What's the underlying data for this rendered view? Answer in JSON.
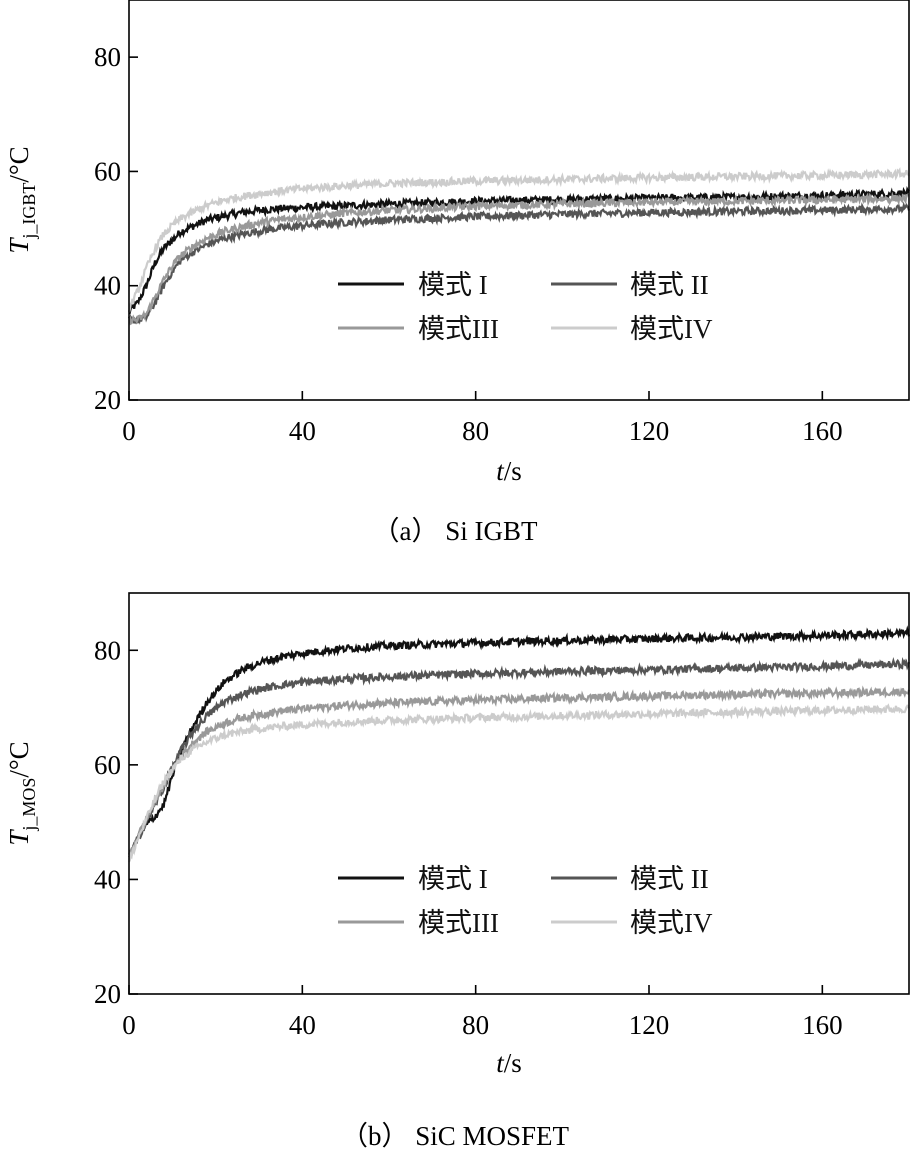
{
  "chart_data": [
    {
      "type": "line",
      "caption": "（a） Si IGBT",
      "ylabel_main": "T",
      "ylabel_sub": "j_IGBT",
      "ylabel_unit": "/°C",
      "xlabel_main": "t",
      "xlabel_unit": "/s",
      "xlim": [
        0,
        180
      ],
      "ylim": [
        20,
        90
      ],
      "xticks": [
        0,
        40,
        80,
        120,
        160
      ],
      "yticks": [
        20,
        40,
        60,
        80
      ],
      "grid": false,
      "legend_position": "lower-center",
      "series": [
        {
          "name": "模式 I",
          "color": "#111111",
          "x": [
            0,
            2,
            4,
            6,
            8,
            10,
            12,
            15,
            18,
            22,
            26,
            30,
            35,
            40,
            50,
            60,
            80,
            100,
            120,
            140,
            160,
            180
          ],
          "y": [
            35.5,
            37,
            40,
            44,
            46.5,
            48,
            49.5,
            50.5,
            51.5,
            52.2,
            52.8,
            53.2,
            53.5,
            53.7,
            54,
            54.3,
            54.8,
            55.1,
            55.3,
            55.5,
            55.8,
            56.2
          ]
        },
        {
          "name": "模式 II",
          "color": "#555555",
          "x": [
            0,
            2,
            4,
            6,
            8,
            10,
            12,
            15,
            18,
            22,
            26,
            30,
            35,
            40,
            50,
            60,
            80,
            100,
            120,
            140,
            160,
            180
          ],
          "y": [
            34,
            34,
            34.5,
            37,
            40,
            42.5,
            44.5,
            46,
            47.2,
            48.3,
            49,
            49.6,
            50.1,
            50.5,
            51.1,
            51.5,
            52.1,
            52.5,
            52.8,
            53,
            53.2,
            53.5
          ]
        },
        {
          "name": "模式III",
          "color": "#999999",
          "x": [
            0,
            2,
            4,
            6,
            8,
            10,
            12,
            15,
            18,
            22,
            26,
            30,
            35,
            40,
            50,
            60,
            80,
            100,
            120,
            140,
            160,
            180
          ],
          "y": [
            34,
            34,
            35,
            38,
            41,
            43.5,
            45.3,
            47,
            48.3,
            49.5,
            50.3,
            51,
            51.6,
            52,
            52.7,
            53.2,
            53.9,
            54.3,
            54.6,
            54.8,
            55,
            55.3
          ]
        },
        {
          "name": "模式IV",
          "color": "#cccccc",
          "x": [
            0,
            2,
            4,
            6,
            8,
            10,
            12,
            15,
            18,
            22,
            26,
            30,
            35,
            40,
            50,
            60,
            80,
            100,
            120,
            140,
            160,
            180
          ],
          "y": [
            36,
            39,
            43,
            46.5,
            49,
            50.5,
            51.8,
            53,
            54,
            55,
            55.6,
            56.1,
            56.6,
            57,
            57.5,
            57.9,
            58.3,
            58.6,
            58.9,
            59.1,
            59.3,
            59.6
          ]
        }
      ]
    },
    {
      "type": "line",
      "caption": "（b） SiC MOSFET",
      "ylabel_main": "T",
      "ylabel_sub": "j_MOS",
      "ylabel_unit": "/°C",
      "xlabel_main": "t",
      "xlabel_unit": "/s",
      "xlim": [
        0,
        180
      ],
      "ylim": [
        20,
        90
      ],
      "xticks": [
        0,
        40,
        80,
        120,
        160
      ],
      "yticks": [
        20,
        40,
        60,
        80
      ],
      "grid": false,
      "legend_position": "lower-center",
      "series": [
        {
          "name": "模式 I",
          "color": "#111111",
          "x": [
            0,
            2,
            4,
            6,
            8,
            10,
            12,
            15,
            18,
            22,
            26,
            30,
            35,
            40,
            50,
            60,
            80,
            100,
            120,
            140,
            160,
            180
          ],
          "y": [
            44,
            47,
            49.5,
            51,
            53,
            58,
            62.5,
            67,
            71,
            74.5,
            76.5,
            77.8,
            78.8,
            79.5,
            80.3,
            80.8,
            81.3,
            81.7,
            82,
            82.3,
            82.6,
            83
          ]
        },
        {
          "name": "模式 II",
          "color": "#555555",
          "x": [
            0,
            2,
            4,
            6,
            8,
            10,
            12,
            15,
            18,
            22,
            26,
            30,
            35,
            40,
            50,
            60,
            80,
            100,
            120,
            140,
            160,
            180
          ],
          "y": [
            44,
            47,
            50,
            53,
            56,
            59.5,
            62.5,
            66,
            68.6,
            71,
            72.3,
            73.2,
            73.9,
            74.4,
            75,
            75.4,
            75.9,
            76.3,
            76.6,
            76.9,
            77.2,
            77.6
          ]
        },
        {
          "name": "模式III",
          "color": "#999999",
          "x": [
            0,
            2,
            4,
            6,
            8,
            10,
            12,
            15,
            18,
            22,
            26,
            30,
            35,
            40,
            50,
            60,
            80,
            100,
            120,
            140,
            160,
            180
          ],
          "y": [
            44,
            47.5,
            50.5,
            53.5,
            56.5,
            59.2,
            61.5,
            64,
            65.8,
            67.3,
            68.2,
            68.8,
            69.4,
            69.8,
            70.4,
            70.8,
            71.3,
            71.7,
            72,
            72.3,
            72.5,
            72.8
          ]
        },
        {
          "name": "模式IV",
          "color": "#cccccc",
          "x": [
            0,
            2,
            4,
            6,
            8,
            10,
            12,
            15,
            18,
            22,
            26,
            30,
            35,
            40,
            50,
            60,
            80,
            100,
            120,
            140,
            160,
            180
          ],
          "y": [
            43,
            47,
            50.5,
            54,
            57,
            59.2,
            61,
            62.8,
            64,
            65.2,
            65.8,
            66.3,
            66.7,
            67,
            67.5,
            67.8,
            68.2,
            68.6,
            68.9,
            69.2,
            69.5,
            69.8
          ]
        }
      ]
    }
  ]
}
